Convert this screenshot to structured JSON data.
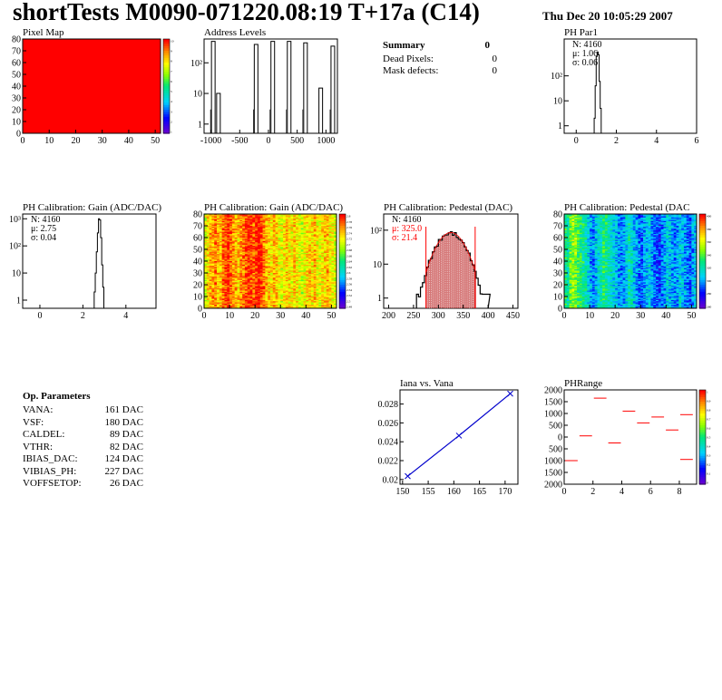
{
  "header": {
    "title": "shortTests M0090-071220.08:19 T+17a (C14)",
    "date": "Thu Dec 20 10:05:29 2007"
  },
  "summary": {
    "heading": "Summary",
    "heading_value": "0",
    "rows": [
      {
        "label": "Dead Pixels:",
        "value": "0"
      },
      {
        "label": "Mask defects:",
        "value": "0"
      }
    ]
  },
  "op_params": {
    "heading": "Op. Parameters",
    "rows": [
      {
        "label": "VANA:",
        "value": "161 DAC"
      },
      {
        "label": "VSF:",
        "value": "180 DAC"
      },
      {
        "label": "CALDEL:",
        "value": "89 DAC"
      },
      {
        "label": "VTHR:",
        "value": "82 DAC"
      },
      {
        "label": "IBIAS_DAC:",
        "value": "124 DAC"
      },
      {
        "label": "VIBIAS_PH:",
        "value": "227 DAC"
      },
      {
        "label": "VOFFSETOP:",
        "value": "26 DAC"
      }
    ]
  },
  "colors": {
    "hist_line": "#000000",
    "pedestal_fit": "#ff0000",
    "pedestal_fill": "#b00000",
    "iana_line": "#0000cc"
  },
  "chart_data": [
    {
      "id": "pixel-map",
      "type": "heatmap",
      "title": "Pixel Map",
      "x_ticks": [
        "0",
        "10",
        "20",
        "30",
        "40",
        "50"
      ],
      "y_ticks": [
        "0",
        "10",
        "20",
        "30",
        "40",
        "50",
        "60",
        "70",
        "80"
      ],
      "xlim": [
        0,
        52
      ],
      "ylim": [
        0,
        80
      ],
      "uniform_color": "#ff0000",
      "colorbar_ticks": [
        "10",
        "9",
        "8",
        "7",
        "6",
        "5",
        "4",
        "3",
        "2",
        "1"
      ]
    },
    {
      "id": "address-levels",
      "type": "bar",
      "title": "Address Levels",
      "x_ticks": [
        "-1000",
        "-500",
        "0",
        "500",
        "1000"
      ],
      "y_ticks": [
        "1",
        "10",
        "10²"
      ],
      "xlim": [
        -1120,
        1200
      ],
      "y_log": true,
      "ylim": [
        0.5,
        600
      ],
      "peaks": [
        {
          "x": -960,
          "y": 500
        },
        {
          "x": -870,
          "y": 10
        },
        {
          "x": -215,
          "y": 400
        },
        {
          "x": 75,
          "y": 500
        },
        {
          "x": 360,
          "y": 500
        },
        {
          "x": 645,
          "y": 450
        },
        {
          "x": 910,
          "y": 15
        },
        {
          "x": 1120,
          "y": 350
        }
      ]
    },
    {
      "id": "ph-par1",
      "type": "bar",
      "title": "PH Par1",
      "x_ticks": [
        "0",
        "2",
        "4",
        "6"
      ],
      "y_ticks": [
        "1",
        "10",
        "10²"
      ],
      "xlim": [
        -0.6,
        6
      ],
      "y_log": true,
      "ylim": [
        0.5,
        3000
      ],
      "stats": {
        "N": "N: 4160",
        "mean": "μ: 1.06",
        "sigma": "σ: 0.06"
      },
      "bins": [
        {
          "x": 0.92,
          "y": 2
        },
        {
          "x": 0.97,
          "y": 40
        },
        {
          "x": 1.02,
          "y": 600
        },
        {
          "x": 1.07,
          "y": 900
        },
        {
          "x": 1.12,
          "y": 700
        },
        {
          "x": 1.17,
          "y": 60
        },
        {
          "x": 1.22,
          "y": 5
        }
      ]
    },
    {
      "id": "ph-gain-hist",
      "type": "bar",
      "title": "PH Calibration: Gain (ADC/DAC)",
      "x_ticks": [
        "0",
        "2",
        "4"
      ],
      "y_ticks": [
        "1",
        "10",
        "10²",
        "10³"
      ],
      "xlim": [
        -0.8,
        5.4
      ],
      "y_log": true,
      "ylim": [
        0.5,
        1500
      ],
      "stats": {
        "N": "N: 4160",
        "mean": "μ: 2.75",
        "sigma": "σ: 0.04"
      },
      "bins": [
        {
          "x": 2.55,
          "y": 2
        },
        {
          "x": 2.6,
          "y": 10
        },
        {
          "x": 2.65,
          "y": 60
        },
        {
          "x": 2.7,
          "y": 300
        },
        {
          "x": 2.75,
          "y": 1000
        },
        {
          "x": 2.8,
          "y": 900
        },
        {
          "x": 2.85,
          "y": 200
        },
        {
          "x": 2.9,
          "y": 20
        },
        {
          "x": 2.95,
          "y": 3
        }
      ]
    },
    {
      "id": "ph-gain-map",
      "type": "heatmap",
      "title": "PH Calibration: Gain (ADC/DAC)",
      "x_ticks": [
        "0",
        "10",
        "20",
        "30",
        "40",
        "50"
      ],
      "y_ticks": [
        "0",
        "10",
        "20",
        "30",
        "40",
        "50",
        "60",
        "70",
        "80"
      ],
      "xlim": [
        0,
        52
      ],
      "ylim": [
        0,
        80
      ],
      "zlim": [
        2.48,
        2.82
      ],
      "colorbar_ticks": [
        "2.8",
        "2.78",
        "2.76",
        "2.74",
        "2.72",
        "2.7",
        "2.68",
        "2.66",
        "2.64",
        "2.62",
        "2.6",
        "2.58",
        "2.56",
        "2.54",
        "2.52",
        "2.5",
        "2.48"
      ],
      "column_profile": [
        2.72,
        2.74,
        2.76,
        2.77,
        2.78,
        2.76,
        2.75,
        2.78,
        2.8,
        2.81,
        2.79,
        2.77,
        2.76,
        2.75,
        2.77,
        2.78,
        2.8,
        2.81,
        2.8,
        2.79,
        2.81,
        2.82,
        2.8,
        2.78,
        2.76,
        2.75,
        2.74,
        2.76,
        2.75,
        2.73,
        2.72,
        2.74,
        2.75,
        2.74,
        2.73,
        2.75,
        2.74,
        2.72,
        2.71,
        2.73,
        2.74,
        2.75,
        2.74,
        2.76,
        2.73,
        2.72,
        2.74,
        2.75,
        2.76,
        2.74,
        2.73,
        2.72
      ]
    },
    {
      "id": "ph-pedestal-hist",
      "type": "bar",
      "title": "PH Calibration: Pedestal (DAC)",
      "x_ticks": [
        "200",
        "250",
        "300",
        "350",
        "400",
        "450"
      ],
      "y_ticks": [
        "1",
        "10",
        "10²"
      ],
      "xlim": [
        190,
        460
      ],
      "y_log": true,
      "ylim": [
        0.5,
        300
      ],
      "stats": {
        "N": "N: 4160",
        "mean": "μ: 325.0",
        "sigma": "σ: 21.4"
      },
      "fit_range": [
        275,
        374
      ],
      "fit": {
        "mean": 325.0,
        "sigma": 21.4,
        "amplitude": 85
      }
    },
    {
      "id": "ph-pedestal-map",
      "type": "heatmap",
      "title": "PH Calibration: Pedestal (DAC",
      "x_ticks": [
        "0",
        "10",
        "20",
        "30",
        "40",
        "50"
      ],
      "y_ticks": [
        "0",
        "10",
        "20",
        "30",
        "40",
        "50",
        "60",
        "70",
        "80"
      ],
      "xlim": [
        0,
        52
      ],
      "ylim": [
        0,
        80
      ],
      "zlim": [
        260,
        400
      ],
      "colorbar_ticks": [
        "400",
        "380",
        "360",
        "340",
        "320",
        "300",
        "280",
        "260"
      ],
      "column_profile": [
        330,
        320,
        340,
        350,
        345,
        335,
        330,
        325,
        320,
        310,
        300,
        295,
        305,
        315,
        320,
        330,
        325,
        320,
        315,
        310,
        305,
        300,
        295,
        300,
        310,
        320,
        315,
        305,
        300,
        295,
        290,
        300,
        305,
        310,
        300,
        295,
        290,
        285,
        295,
        300,
        310,
        305,
        300,
        295,
        300,
        310,
        305,
        300,
        295,
        290,
        300,
        305
      ]
    },
    {
      "id": "iana-vs-vana",
      "type": "line",
      "title": "Iana vs. Vana",
      "x_ticks": [
        "150",
        "155",
        "160",
        "165",
        "170"
      ],
      "y_ticks": [
        "0.02",
        "0.022",
        "0.024",
        "0.026",
        "0.028"
      ],
      "xlim": [
        149.5,
        172.5
      ],
      "ylim": [
        0.0195,
        0.0295
      ],
      "x": [
        151,
        161,
        171
      ],
      "y": [
        0.02035,
        0.02465,
        0.0291
      ]
    },
    {
      "id": "ph-range",
      "type": "scatter",
      "title": "PHRange",
      "x_ticks": [
        "0",
        "2",
        "4",
        "6",
        "8"
      ],
      "y_ticks": [
        "2000",
        "1500",
        "1000",
        "500",
        "0",
        "500",
        "1000",
        "1500",
        "2000"
      ],
      "xlim": [
        0,
        9.2
      ],
      "ylim": [
        -2000,
        2000
      ],
      "bins": [
        {
          "x": 0.5,
          "y": -1000
        },
        {
          "x": 1.5,
          "y": 50
        },
        {
          "x": 2.5,
          "y": 1650
        },
        {
          "x": 3.5,
          "y": -250
        },
        {
          "x": 4.5,
          "y": 1100
        },
        {
          "x": 5.5,
          "y": 600
        },
        {
          "x": 6.5,
          "y": 850
        },
        {
          "x": 7.5,
          "y": 300
        },
        {
          "x": 8.5,
          "y": 950
        },
        {
          "x": 8.5,
          "y": -950
        }
      ],
      "colorbar_ticks": [
        "1",
        "0.9",
        "0.8",
        "0.7",
        "0.6",
        "0.5",
        "0.4",
        "0.3",
        "0.2",
        "0.1",
        "0"
      ]
    }
  ]
}
